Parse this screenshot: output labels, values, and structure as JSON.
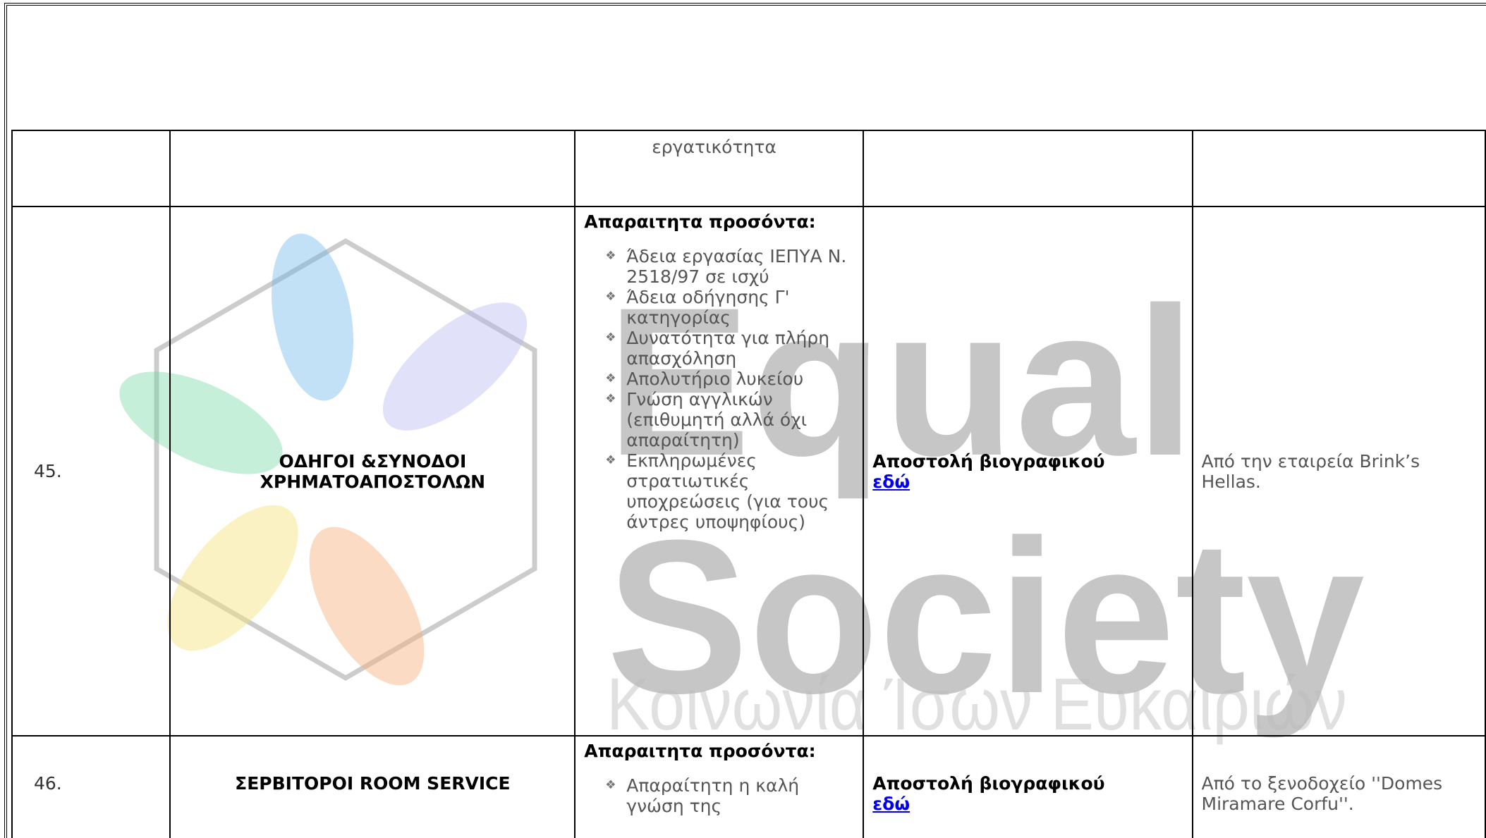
{
  "watermark": {
    "line1": "Equal",
    "line2": "Society",
    "line3": "Κοινωνία Ίσων Ευκαιριών"
  },
  "table": {
    "rows": [
      {
        "number": null,
        "title": null,
        "requirements_tail": "εργατικότητα"
      },
      {
        "number": "45.",
        "title": "ΟΔΗΓΟΙ &ΣΥΝΟΔΟΙ ΧΡΗΜΑΤΟΑΠΟΣΤΟΛΩΝ",
        "requirements_heading": "Απαραιτητα προσόντα:",
        "requirements": [
          "Άδεια εργασίας ΙΕΠΥΑ Ν. 2518/97 σε ισχύ",
          "Άδεια οδήγησης Γ' κατηγορίας",
          "Δυνατότητα για πλήρη απασχόληση",
          "Απολυτήριο λυκείου",
          "Γνώση αγγλικών (επιθυμητή αλλά όχι απαραίτητη)",
          "Εκπληρωμένες στρατιωτικές υποχρεώσεις (για τους άντρες υποψηφίους)"
        ],
        "apply_text": "Αποστολή βιογραφικού",
        "apply_link": "εδώ",
        "note": "Από την εταιρεία Brink’s Hellas."
      },
      {
        "number": "46.",
        "title": "ΣΕΡΒΙΤΟΡΟΙ ROOM SERVICE",
        "requirements_heading": "Απαραιτητα προσόντα:",
        "requirements": [
          "Απαραίτητη η καλή γνώση της"
        ],
        "apply_text": "Αποστολή βιογραφικού",
        "apply_link": "εδώ",
        "note": "Από το ξενοδοχείο ''Domes Miramare Corfu''."
      }
    ]
  }
}
